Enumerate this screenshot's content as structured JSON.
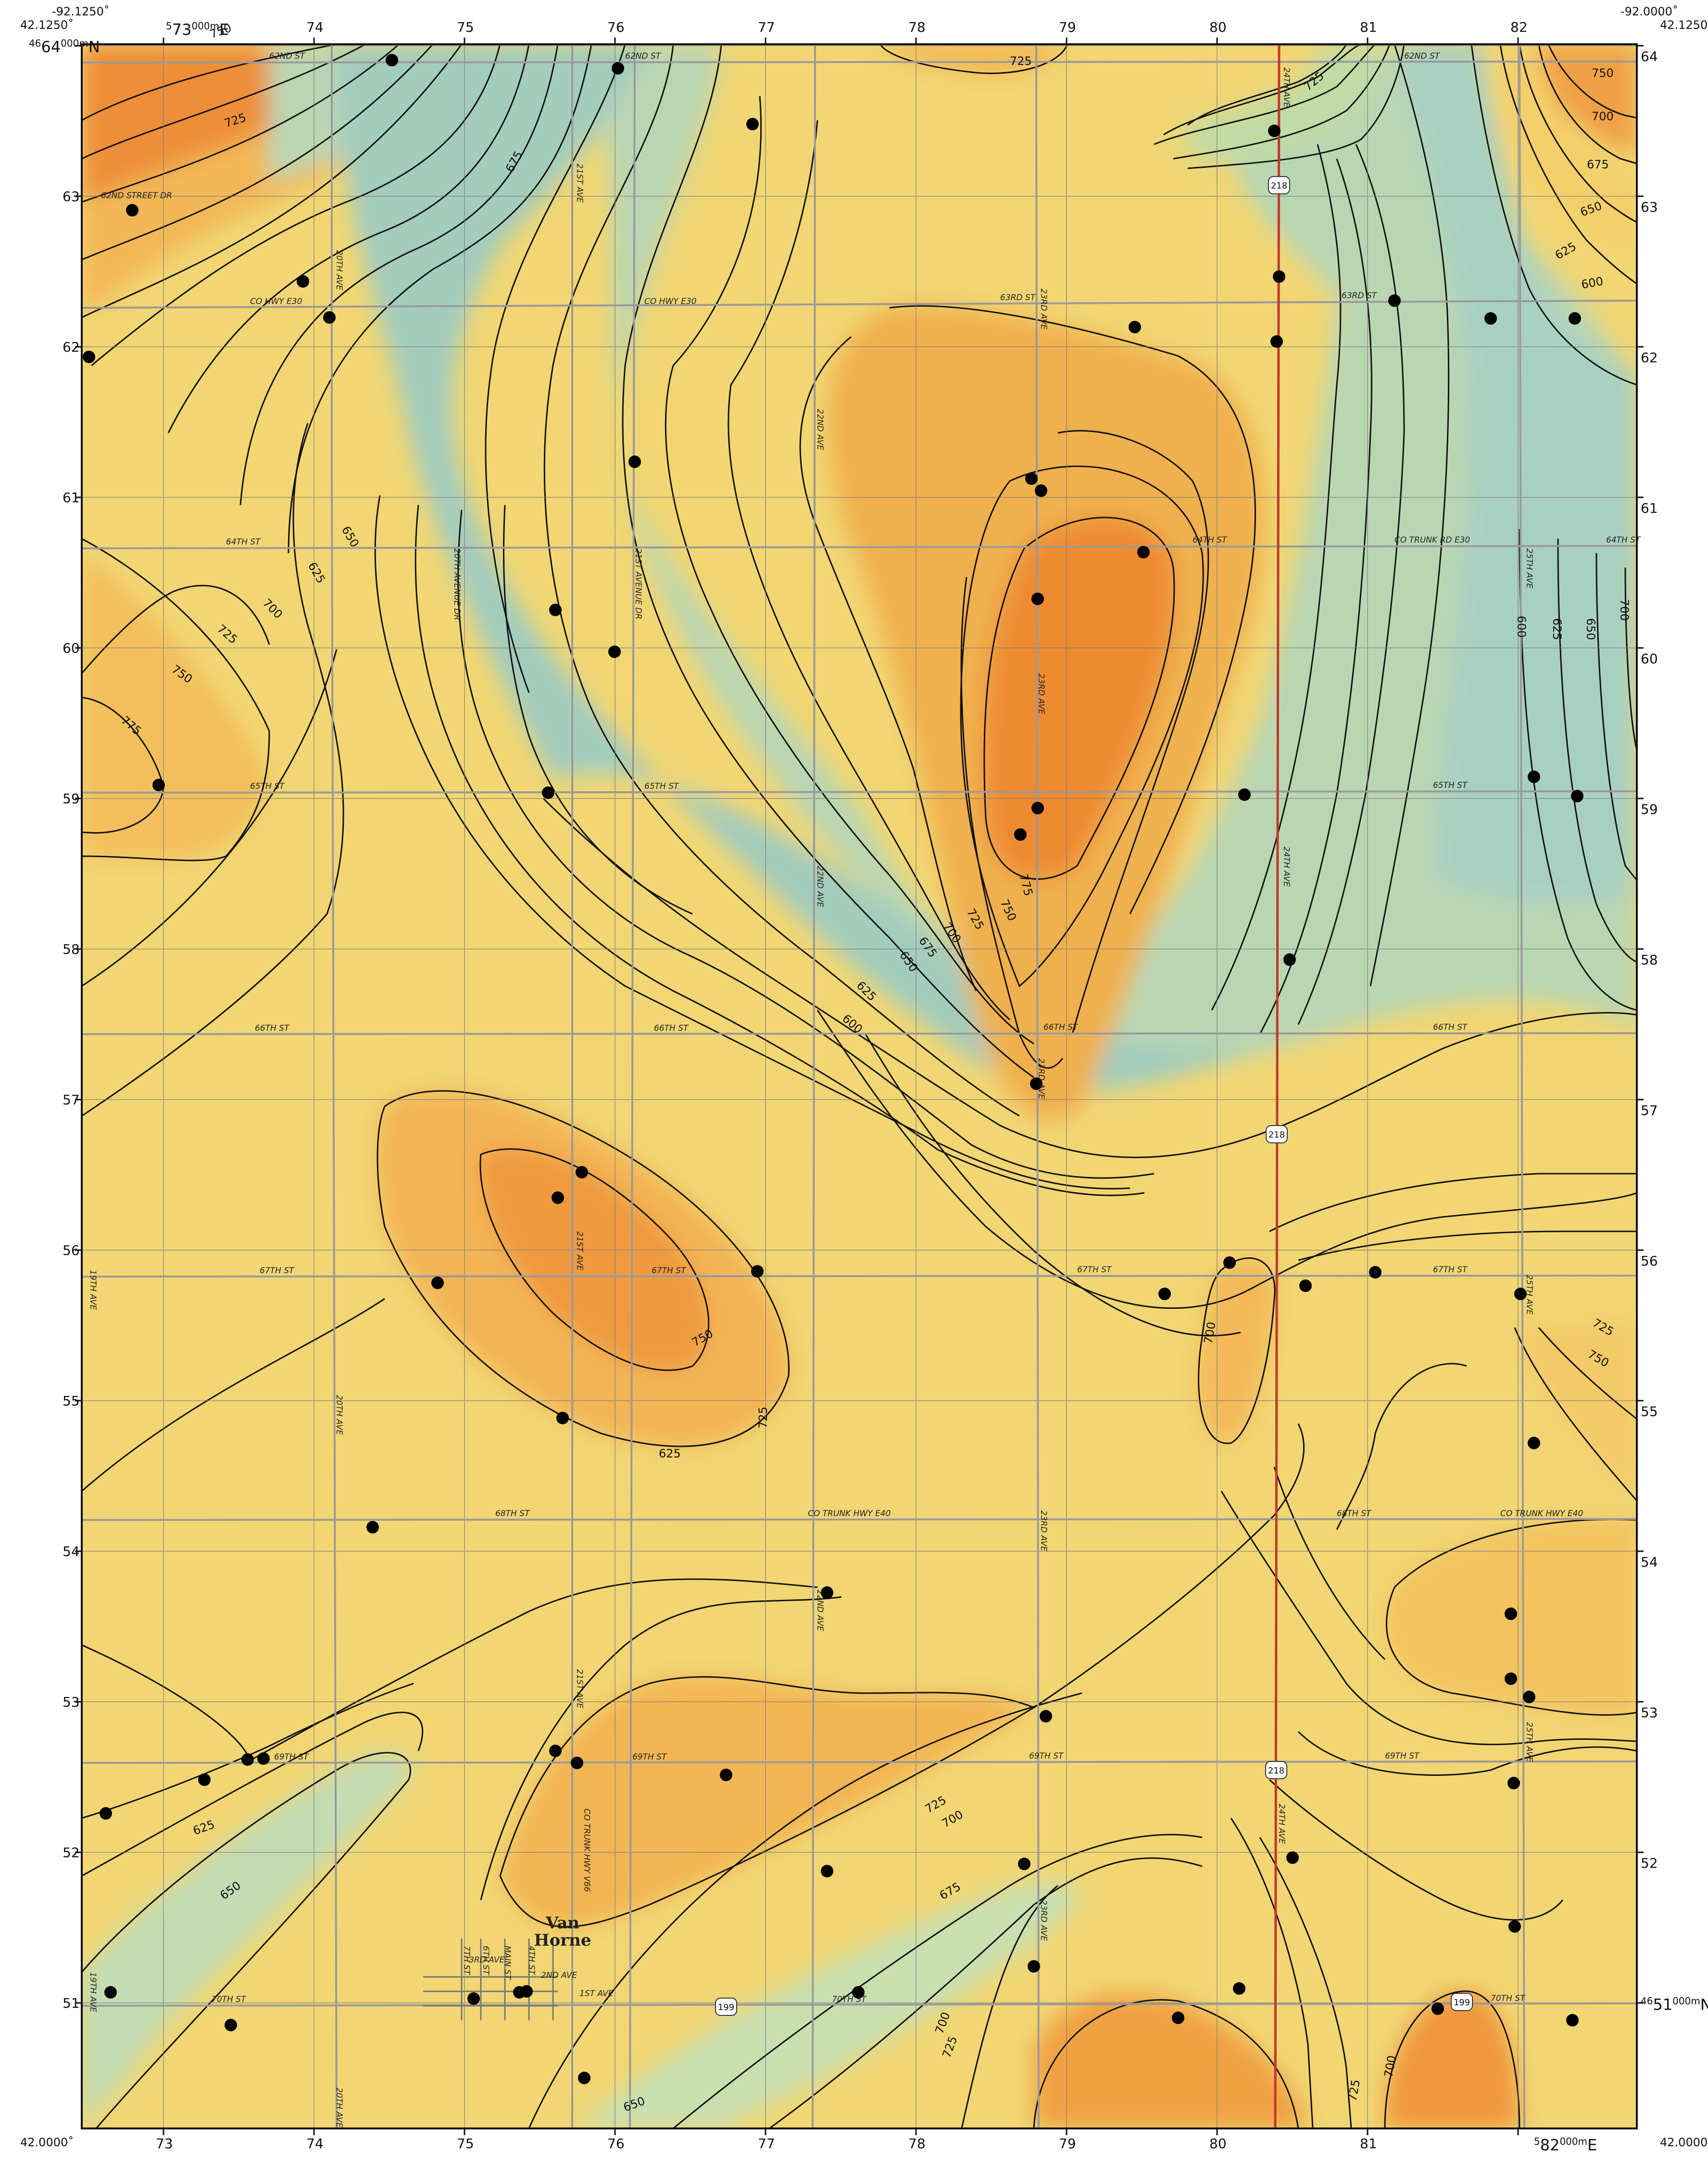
{
  "corners": {
    "top_left_lat": "42.1250˚",
    "top_left_lon": "-92.1250˚",
    "top_right_lat": "42.1250",
    "top_right_lon": "-92.0000˚",
    "bottom_left_lat": "42.0000˚",
    "bottom_left_lon": "-92.1250˚",
    "bottom_right_lat": "42.0000",
    "bottom_right_lon": "-92.0000˚"
  },
  "grid": {
    "top_easting_first": "573000m E",
    "top_easting_super": "5",
    "top_easting_main": "73",
    "top_easting_tail": "000m",
    "top_easting_unit": "E",
    "northing_top_super": "46",
    "northing_top_main": "64",
    "northing_top_tail": "000m",
    "northing_top_unit": "N",
    "bottom_easting_super": "5",
    "bottom_easting_main": "82",
    "bottom_easting_tail": "000m",
    "bottom_easting_unit": "E",
    "northing_bottom_super": "46",
    "northing_bottom_main": "51",
    "northing_bottom_tail": "000m",
    "northing_bottom_unit": "N",
    "eastings_top": [
      "74",
      "75",
      "76",
      "77",
      "78",
      "79",
      "80",
      "81",
      "82"
    ],
    "eastings_bottom": [
      "73",
      "74",
      "75",
      "76",
      "77",
      "78",
      "79",
      "80",
      "81"
    ],
    "northings_left": [
      "63",
      "62",
      "61",
      "60",
      "59",
      "58",
      "57",
      "56",
      "55",
      "54",
      "53",
      "52",
      "51"
    ],
    "northings_right": [
      "64",
      "63",
      "62",
      "61",
      "60",
      "59",
      "58",
      "57",
      "56",
      "55",
      "54",
      "53",
      "52"
    ]
  },
  "roads": {
    "streets": [
      "62ND ST",
      "63RD ST",
      "64TH ST",
      "65TH ST",
      "66TH ST",
      "67TH ST",
      "68TH ST",
      "69TH ST",
      "70TH ST",
      "CO HWY E30",
      "CO TRUNK RD E30",
      "CO TRUNK HWY E40",
      "62ND STREET DR",
      "1ST AVE",
      "2ND AVE",
      "3RD AVE"
    ],
    "avenues": [
      "19TH AVE",
      "20TH AVE",
      "20TH AVENUE DR",
      "21ST AVE",
      "21ST AVENUE DR",
      "22ND AVE",
      "23RD AVE",
      "24TH AVE",
      "25TH AVE",
      "CO TRUNK HWY V66",
      "MAIN ST",
      "4TH ST",
      "6TH ST",
      "7TH ST"
    ],
    "shields": [
      "218",
      "199"
    ]
  },
  "town": {
    "name_line1": "Van",
    "name_line2": "Horne"
  },
  "contours": {
    "interval": "25",
    "labels": [
      "600",
      "625",
      "650",
      "675",
      "700",
      "725",
      "750",
      "775"
    ]
  },
  "legend_colors": {
    "low": "#a8d0bf",
    "mid_low": "#dbe7a6",
    "mid": "#f3e48f",
    "mid_high": "#f2c061",
    "high": "#ee8a32"
  }
}
